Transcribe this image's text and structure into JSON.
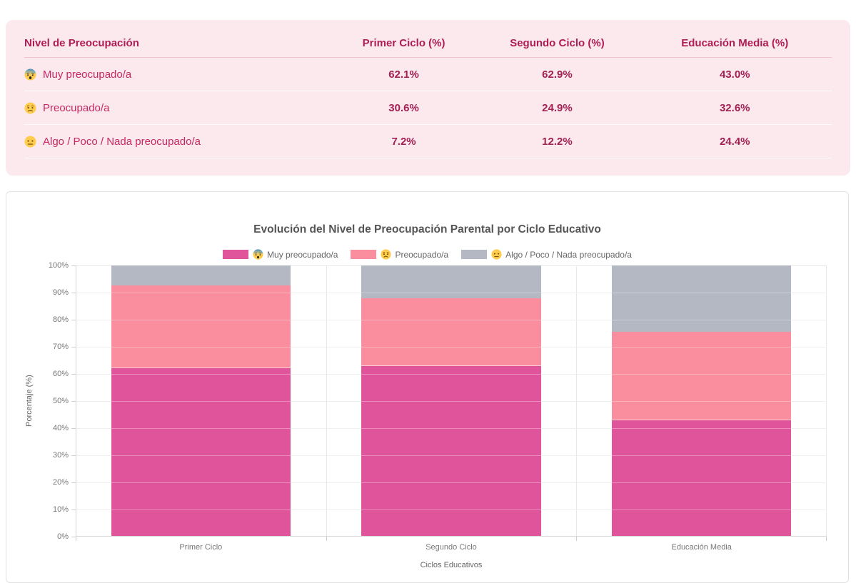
{
  "table": {
    "columns": [
      "Nivel de Preocupación",
      "Primer Ciclo (%)",
      "Segundo Ciclo (%)",
      "Educación Media (%)"
    ],
    "rows": [
      {
        "icon": "anxious-face-sweat-emoji",
        "emoji": "😰",
        "label": "Muy preocupado/a",
        "values": [
          "62.1%",
          "62.9%",
          "43.0%"
        ]
      },
      {
        "icon": "worried-face-emoji",
        "emoji": "😟",
        "label": "Preocupado/a",
        "values": [
          "30.6%",
          "24.9%",
          "32.6%"
        ]
      },
      {
        "icon": "neutral-face-emoji",
        "emoji": "😐",
        "label": "Algo / Poco / Nada preocupado/a",
        "values": [
          "7.2%",
          "12.2%",
          "24.4%"
        ]
      }
    ],
    "card_bg": "#fce9ed",
    "header_color": "#b01d55",
    "label_color": "#c52862",
    "value_color": "#a22153"
  },
  "chart_data": {
    "type": "bar",
    "stacked": true,
    "title": "Evolución del Nivel de Preocupación Parental por Ciclo Educativo",
    "categories": [
      "Primer Ciclo",
      "Segundo Ciclo",
      "Educación Media"
    ],
    "series": [
      {
        "name": "Muy preocupado/a",
        "emoji": "😰",
        "icon": "anxious-face-sweat-emoji",
        "color": "#e0549b",
        "values": [
          62.1,
          62.9,
          43.0
        ]
      },
      {
        "name": "Preocupado/a",
        "emoji": "😟",
        "icon": "worried-face-emoji",
        "color": "#fb8e9e",
        "values": [
          30.6,
          24.9,
          32.6
        ]
      },
      {
        "name": "Algo / Poco / Nada preocupado/a",
        "emoji": "😐",
        "icon": "neutral-face-emoji",
        "color": "#b4b8c3",
        "values": [
          7.2,
          12.2,
          24.4
        ]
      }
    ],
    "xlabel": "Ciclos Educativos",
    "ylabel": "Porcentaje (%)",
    "ylim": [
      0,
      100
    ],
    "yticks": [
      "0%",
      "10%",
      "20%",
      "30%",
      "40%",
      "50%",
      "60%",
      "70%",
      "80%",
      "90%",
      "100%"
    ],
    "grid": true,
    "legend_position": "top"
  }
}
